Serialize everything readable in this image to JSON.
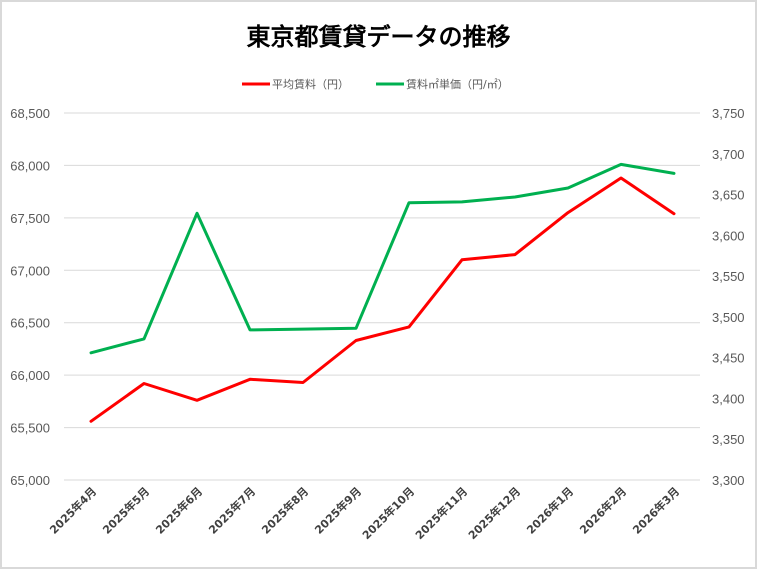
{
  "chart_data": {
    "type": "line",
    "title": "東京都賃貸データの推移",
    "categories": [
      "2025年4月",
      "2025年5月",
      "2025年6月",
      "2025年7月",
      "2025年8月",
      "2025年9月",
      "2025年10月",
      "2025年11月",
      "2025年12月",
      "2026年1月",
      "2026年2月",
      "2026年3月"
    ],
    "series": [
      {
        "name": "平均賃料（円）",
        "axis": "left",
        "color": "#ff0000",
        "values": [
          65560,
          65920,
          65760,
          65960,
          65930,
          66330,
          66460,
          67100,
          67150,
          67550,
          67880,
          67540
        ]
      },
      {
        "name": "賃料㎡単価（円/㎡）",
        "axis": "right",
        "color": "#00b050",
        "values": [
          3456,
          3473,
          3627,
          3484,
          3485,
          3486,
          3640,
          3641,
          3647,
          3658,
          3687,
          3676
        ]
      }
    ],
    "y_left": {
      "min": 65000,
      "max": 68500,
      "step": 500,
      "ticks": [
        "65,000",
        "65,500",
        "66,000",
        "66,500",
        "67,000",
        "67,500",
        "68,000",
        "68,500"
      ]
    },
    "y_right": {
      "min": 3300,
      "max": 3750,
      "step": 50,
      "ticks": [
        "3,300",
        "3,350",
        "3,400",
        "3,450",
        "3,500",
        "3,550",
        "3,600",
        "3,650",
        "3,700",
        "3,750"
      ]
    },
    "xlabel": "",
    "ylabel": "",
    "grid": true,
    "legend_position": "top"
  }
}
